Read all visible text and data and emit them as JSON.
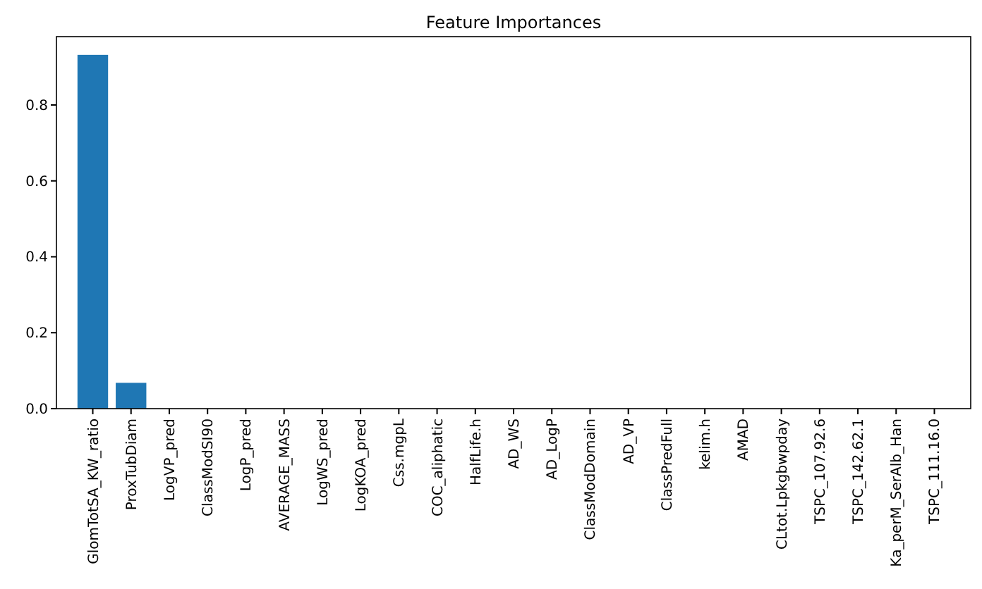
{
  "chart_data": {
    "type": "bar",
    "title": "Feature Importances",
    "categories": [
      "GlomTotSA_KW_ratio",
      "ProxTubDiam",
      "LogVP_pred",
      "ClassModSI90",
      "LogP_pred",
      "AVERAGE_MASS",
      "LogWS_pred",
      "LogKOA_pred",
      "Css.mgpL",
      "COC_aliphatic",
      "HalfLife.h",
      "AD_WS",
      "AD_LogP",
      "ClassModDomain",
      "AD_VP",
      "ClassPredFull",
      "kelim.h",
      "AMAD",
      "CLtot.Lpkgbwpday",
      "TSPC_107.92.6",
      "TSPC_142.62.1",
      "Ka_perM_SerAlb_Han",
      "TSPC_111.16.0"
    ],
    "values": [
      0.932,
      0.068,
      0,
      0,
      0,
      0,
      0,
      0,
      0,
      0,
      0,
      0,
      0,
      0,
      0,
      0,
      0,
      0,
      0,
      0,
      0,
      0,
      0
    ],
    "color": "#1f77b4",
    "ylim": [
      0,
      0.98
    ],
    "yticks": [
      {
        "value": 0,
        "label": "0.0"
      },
      {
        "value": 0.2,
        "label": "0.2"
      },
      {
        "value": 0.4,
        "label": "0.4"
      },
      {
        "value": 0.6,
        "label": "0.6"
      },
      {
        "value": 0.8,
        "label": "0.8"
      }
    ]
  }
}
